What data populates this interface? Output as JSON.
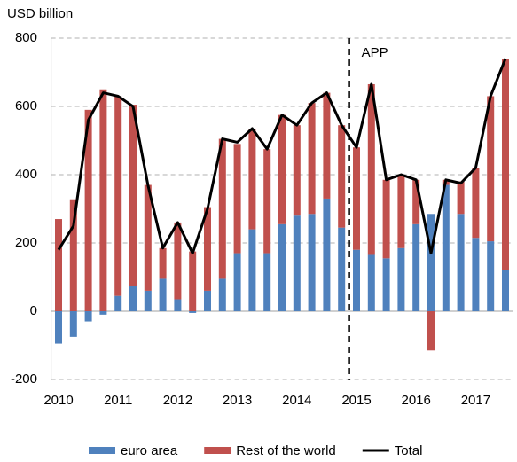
{
  "chart_data": {
    "type": "stacked_bar_line",
    "y_label": "USD billion",
    "categories": [
      "2010",
      null,
      null,
      null,
      "2011",
      null,
      null,
      null,
      "2012",
      null,
      null,
      null,
      "2013",
      null,
      null,
      null,
      "2014",
      null,
      null,
      null,
      "2015",
      null,
      null,
      null,
      "2016",
      null,
      null,
      null,
      "2017",
      null,
      null
    ],
    "series": [
      {
        "name": "euro area",
        "color": "#4f81bd",
        "kind": "bar",
        "values": [
          -95,
          -75,
          -30,
          -10,
          45,
          75,
          60,
          95,
          35,
          -5,
          60,
          95,
          170,
          240,
          170,
          255,
          280,
          285,
          330,
          245,
          180,
          165,
          155,
          185,
          255,
          285,
          370,
          285,
          215,
          205,
          120
        ]
      },
      {
        "name": "Rest of the world",
        "color": "#c0504d",
        "kind": "bar",
        "values": [
          270,
          328,
          590,
          650,
          585,
          530,
          310,
          90,
          225,
          175,
          245,
          410,
          320,
          295,
          305,
          320,
          265,
          325,
          310,
          300,
          300,
          500,
          230,
          215,
          130,
          -115,
          15,
          95,
          205,
          425,
          620
        ]
      },
      {
        "name": "Total",
        "color": "#000000",
        "kind": "line",
        "values": [
          180,
          250,
          560,
          640,
          630,
          600,
          370,
          185,
          260,
          170,
          300,
          505,
          495,
          535,
          475,
          575,
          545,
          610,
          640,
          545,
          480,
          665,
          385,
          400,
          385,
          170,
          385,
          375,
          420,
          630,
          740
        ]
      }
    ],
    "annotation": {
      "label": "APP",
      "category": "2015"
    },
    "ylim": [
      -200,
      800
    ],
    "yticks": [
      -200,
      0,
      200,
      400,
      600,
      800
    ],
    "grid": true
  }
}
